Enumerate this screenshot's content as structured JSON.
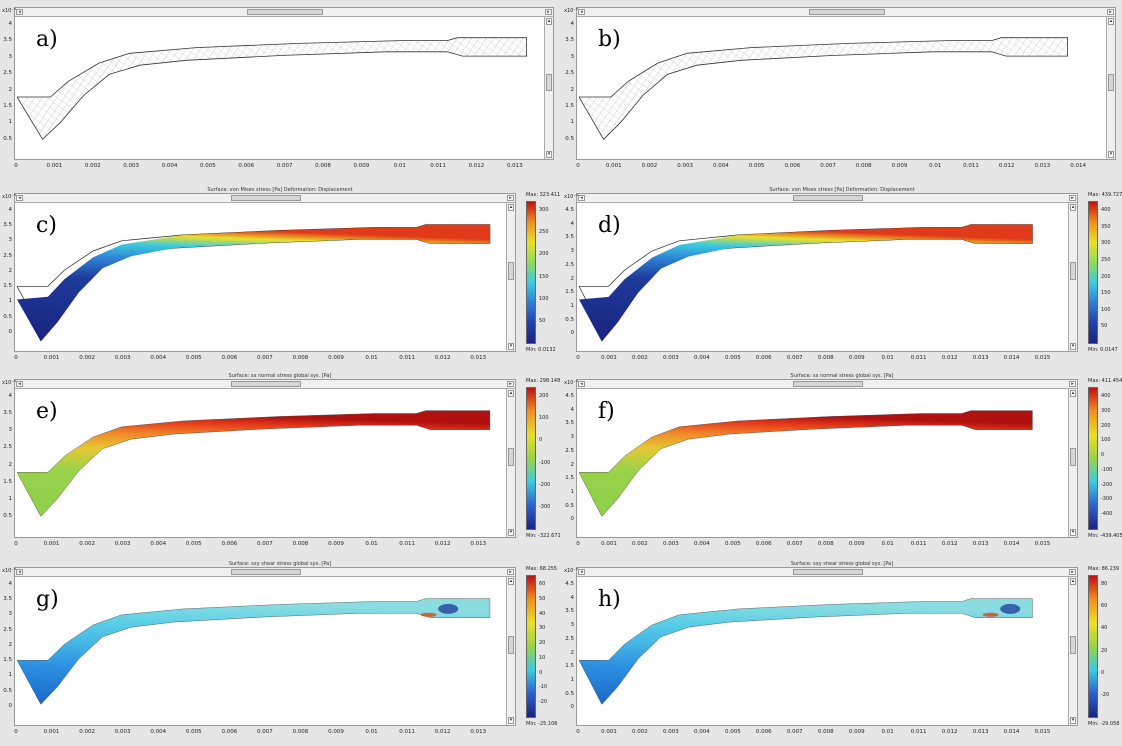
{
  "panels": [
    {
      "label": "a)",
      "title": "",
      "exp": "x10⁻³",
      "yticks": [
        "4",
        "3.5",
        "3",
        "2.5",
        "2",
        "1.5",
        "1",
        "0.5"
      ],
      "xticks": [
        "0",
        "0.001",
        "0.002",
        "0.003",
        "0.004",
        "0.005",
        "0.006",
        "0.007",
        "0.008",
        "0.009",
        "0.01",
        "0.011",
        "0.012",
        "0.013"
      ],
      "cmax": "",
      "cmin": "",
      "cticks": []
    },
    {
      "label": "b)",
      "title": "",
      "exp": "x10⁻³",
      "yticks": [
        "4",
        "3.5",
        "3",
        "2.5",
        "2",
        "1.5",
        "1",
        "0.5"
      ],
      "xticks": [
        "0",
        "0.001",
        "0.002",
        "0.003",
        "0.004",
        "0.005",
        "0.006",
        "0.007",
        "0.008",
        "0.009",
        "0.01",
        "0.011",
        "0.012",
        "0.013",
        "0.014"
      ],
      "cmax": "",
      "cmin": "",
      "cticks": []
    },
    {
      "label": "c)",
      "title": "Surface: von Mises stress [Pa]  Deformation: Displacement",
      "exp": "x10⁻³",
      "yticks": [
        "4",
        "3.5",
        "3",
        "2.5",
        "2",
        "1.5",
        "1",
        "0.5",
        "0"
      ],
      "xticks": [
        "0",
        "0.001",
        "0.002",
        "0.003",
        "0.004",
        "0.005",
        "0.006",
        "0.007",
        "0.008",
        "0.009",
        "0.01",
        "0.011",
        "0.012",
        "0.013"
      ],
      "cmax": "Max: 323.411",
      "cmin": "Min: 0.0132",
      "cticks": [
        "300",
        "250",
        "200",
        "150",
        "100",
        "50"
      ]
    },
    {
      "label": "d)",
      "title": "Surface: von Mises stress [Pa]  Deformation: Displacement",
      "exp": "x10⁻³",
      "yticks": [
        "4.5",
        "4",
        "3.5",
        "3",
        "2.5",
        "2",
        "1.5",
        "1",
        "0.5",
        "0"
      ],
      "xticks": [
        "0",
        "0.001",
        "0.002",
        "0.003",
        "0.004",
        "0.005",
        "0.006",
        "0.007",
        "0.008",
        "0.009",
        "0.01",
        "0.011",
        "0.012",
        "0.013",
        "0.014",
        "0.015"
      ],
      "cmax": "Max: 439.727",
      "cmin": "Min: 0.0147",
      "cticks": [
        "400",
        "350",
        "300",
        "250",
        "200",
        "150",
        "100",
        "50"
      ]
    },
    {
      "label": "e)",
      "title": "Surface: sx normal stress global sys. [Pa]",
      "exp": "x10⁻³",
      "yticks": [
        "4",
        "3.5",
        "3",
        "2.5",
        "2",
        "1.5",
        "1",
        "0.5"
      ],
      "xticks": [
        "0",
        "0.001",
        "0.002",
        "0.003",
        "0.004",
        "0.005",
        "0.006",
        "0.007",
        "0.008",
        "0.009",
        "0.01",
        "0.011",
        "0.012",
        "0.013"
      ],
      "cmax": "Max: 298.148",
      "cmin": "Min: -322.671",
      "cticks": [
        "200",
        "100",
        "0",
        "-100",
        "-200",
        "-300"
      ]
    },
    {
      "label": "f)",
      "title": "Surface: sx normal stress global sys. [Pa]",
      "exp": "x10⁻³",
      "yticks": [
        "4.5",
        "4",
        "3.5",
        "3",
        "2.5",
        "2",
        "1.5",
        "1",
        "0.5",
        "0"
      ],
      "xticks": [
        "0",
        "0.001",
        "0.002",
        "0.003",
        "0.004",
        "0.005",
        "0.006",
        "0.007",
        "0.008",
        "0.009",
        "0.01",
        "0.011",
        "0.012",
        "0.013",
        "0.014",
        "0.015"
      ],
      "cmax": "Max: 411.454",
      "cmin": "Min: -439.405",
      "cticks": [
        "400",
        "300",
        "200",
        "100",
        "0",
        "-100",
        "-200",
        "-300",
        "-400"
      ]
    },
    {
      "label": "g)",
      "title": "Surface: sxy shear stress global sys. [Pa]",
      "exp": "x10⁻³",
      "yticks": [
        "4",
        "3.5",
        "3",
        "2.5",
        "2",
        "1.5",
        "1",
        "0.5",
        "0"
      ],
      "xticks": [
        "0",
        "0.001",
        "0.002",
        "0.003",
        "0.004",
        "0.005",
        "0.006",
        "0.007",
        "0.008",
        "0.009",
        "0.01",
        "0.011",
        "0.012",
        "0.013"
      ],
      "cmax": "Max: 68.255",
      "cmin": "Min: -25.106",
      "cticks": [
        "60",
        "50",
        "40",
        "30",
        "20",
        "10",
        "0",
        "-10",
        "-20"
      ]
    },
    {
      "label": "h)",
      "title": "Surface: sxy shear stress global sys. [Pa]",
      "exp": "x10⁻³",
      "yticks": [
        "4.5",
        "4",
        "3.5",
        "3",
        "2.5",
        "2",
        "1.5",
        "1",
        "0.5",
        "0"
      ],
      "xticks": [
        "0",
        "0.001",
        "0.002",
        "0.003",
        "0.004",
        "0.005",
        "0.006",
        "0.007",
        "0.008",
        "0.009",
        "0.01",
        "0.011",
        "0.012",
        "0.013",
        "0.014",
        "0.015"
      ],
      "cmax": "Max: 86.239",
      "cmin": "Min: -29.058",
      "cticks": [
        "80",
        "60",
        "40",
        "20",
        "0",
        "-20"
      ]
    }
  ],
  "colors": {
    "plot_bg": "#ffffff",
    "frame_bg": "#e6e6e6",
    "mesh": "#8a8a8a"
  }
}
